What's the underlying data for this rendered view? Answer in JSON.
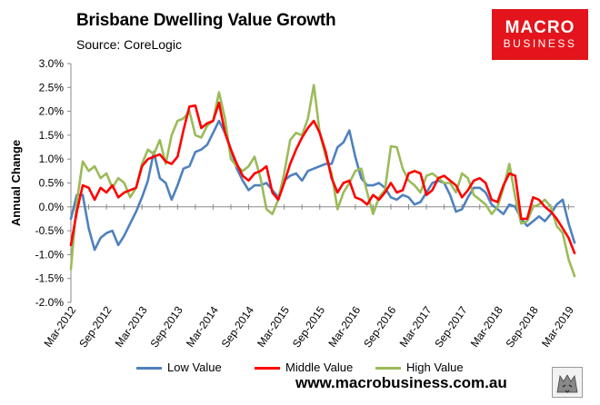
{
  "header": {
    "title": "Brisbane Dwelling Value Growth",
    "source": "Source: CoreLogic"
  },
  "logo": {
    "line1": "MACRO",
    "line2": "BUSINESS"
  },
  "footer": {
    "url": "www.macrobusiness.com.au"
  },
  "chart_data": {
    "type": "line",
    "title": "Brisbane Dwelling Value Growth",
    "ylabel": "Annual Change",
    "xlabel": "",
    "ylim": [
      -2.0,
      3.0
    ],
    "yticks": [
      "3.0%",
      "2.5%",
      "2.0%",
      "1.5%",
      "1.0%",
      "0.5%",
      "0.0%",
      "-0.5%",
      "-1.0%",
      "-1.5%",
      "-2.0%"
    ],
    "xticks": [
      {
        "label": "Mar-2012",
        "index": 0
      },
      {
        "label": "Sep-2012",
        "index": 6
      },
      {
        "label": "Mar-2013",
        "index": 12
      },
      {
        "label": "Sep-2013",
        "index": 18
      },
      {
        "label": "Mar-2014",
        "index": 24
      },
      {
        "label": "Sep-2014",
        "index": 30
      },
      {
        "label": "Mar-2015",
        "index": 36
      },
      {
        "label": "Sep-2015",
        "index": 42
      },
      {
        "label": "Mar-2016",
        "index": 48
      },
      {
        "label": "Sep-2016",
        "index": 54
      },
      {
        "label": "Mar-2017",
        "index": 60
      },
      {
        "label": "Sep-2017",
        "index": 66
      },
      {
        "label": "Mar-2018",
        "index": 72
      },
      {
        "label": "Sep-2018",
        "index": 78
      },
      {
        "label": "Mar-2019",
        "index": 84
      }
    ],
    "grid": false,
    "legend_position": "bottom",
    "series": [
      {
        "name": "Low Value",
        "color": "#4f81bd",
        "values": [
          -0.25,
          0.25,
          0.25,
          -0.45,
          -0.9,
          -0.65,
          -0.55,
          -0.5,
          -0.8,
          -0.6,
          -0.35,
          -0.1,
          0.2,
          0.55,
          1.15,
          0.6,
          0.5,
          0.15,
          0.45,
          0.8,
          0.85,
          1.15,
          1.2,
          1.3,
          1.55,
          1.8,
          1.55,
          1.2,
          0.8,
          0.55,
          0.35,
          0.45,
          0.45,
          0.5,
          0.35,
          0.2,
          0.55,
          0.65,
          0.7,
          0.55,
          0.75,
          0.8,
          0.85,
          0.9,
          0.9,
          1.25,
          1.35,
          1.6,
          1.05,
          0.6,
          0.45,
          0.45,
          0.5,
          0.4,
          0.2,
          0.15,
          0.25,
          0.2,
          0.05,
          0.1,
          0.3,
          0.5,
          0.55,
          0.5,
          0.25,
          -0.1,
          -0.05,
          0.2,
          0.4,
          0.4,
          0.3,
          0.05,
          -0.05,
          -0.15,
          0.05,
          0.0,
          -0.25,
          -0.4,
          -0.3,
          -0.2,
          -0.3,
          -0.15,
          0.05,
          0.15,
          -0.35,
          -0.75
        ]
      },
      {
        "name": "Middle Value",
        "color": "#ff0000",
        "values": [
          -0.8,
          -0.1,
          0.45,
          0.4,
          0.15,
          0.4,
          0.3,
          0.45,
          0.2,
          0.3,
          0.35,
          0.4,
          0.85,
          1.0,
          1.05,
          1.1,
          0.95,
          0.9,
          1.05,
          1.6,
          2.1,
          2.12,
          1.65,
          1.75,
          1.8,
          2.18,
          1.55,
          1.2,
          0.9,
          0.65,
          0.55,
          0.7,
          0.75,
          0.85,
          0.3,
          0.15,
          0.5,
          0.9,
          1.2,
          1.45,
          1.65,
          1.8,
          1.55,
          1.15,
          0.6,
          0.3,
          0.5,
          0.55,
          0.2,
          0.15,
          0.05,
          0.25,
          0.15,
          0.3,
          0.5,
          0.3,
          0.35,
          0.7,
          0.75,
          0.7,
          0.25,
          0.35,
          0.6,
          0.65,
          0.55,
          0.45,
          0.2,
          0.35,
          0.55,
          0.6,
          0.5,
          0.15,
          0.1,
          0.45,
          0.7,
          0.65,
          -0.25,
          -0.25,
          0.2,
          0.15,
          0.0,
          -0.1,
          -0.25,
          -0.45,
          -0.65,
          -0.97
        ]
      },
      {
        "name": "High Value",
        "color": "#9bbb59",
        "values": [
          -1.3,
          0.1,
          0.95,
          0.75,
          0.85,
          0.6,
          0.7,
          0.4,
          0.6,
          0.5,
          0.2,
          0.4,
          0.9,
          1.2,
          1.1,
          1.4,
          0.9,
          1.5,
          1.8,
          1.85,
          2.0,
          1.5,
          1.45,
          1.7,
          1.8,
          2.4,
          1.85,
          1.0,
          0.85,
          0.75,
          0.85,
          1.05,
          0.6,
          -0.05,
          -0.15,
          0.15,
          0.7,
          1.4,
          1.55,
          1.5,
          1.85,
          2.55,
          1.55,
          1.05,
          0.7,
          -0.05,
          0.3,
          0.5,
          0.75,
          0.8,
          0.3,
          -0.15,
          0.2,
          0.35,
          1.27,
          1.25,
          0.8,
          0.55,
          0.45,
          0.3,
          0.65,
          0.7,
          0.6,
          0.5,
          0.5,
          0.3,
          0.7,
          0.6,
          0.25,
          0.15,
          0.05,
          -0.15,
          0.0,
          0.4,
          0.9,
          0.2,
          -0.35,
          -0.3,
          0.0,
          0.05,
          0.15,
          0.0,
          -0.4,
          -0.55,
          -1.1,
          -1.45
        ]
      }
    ]
  }
}
